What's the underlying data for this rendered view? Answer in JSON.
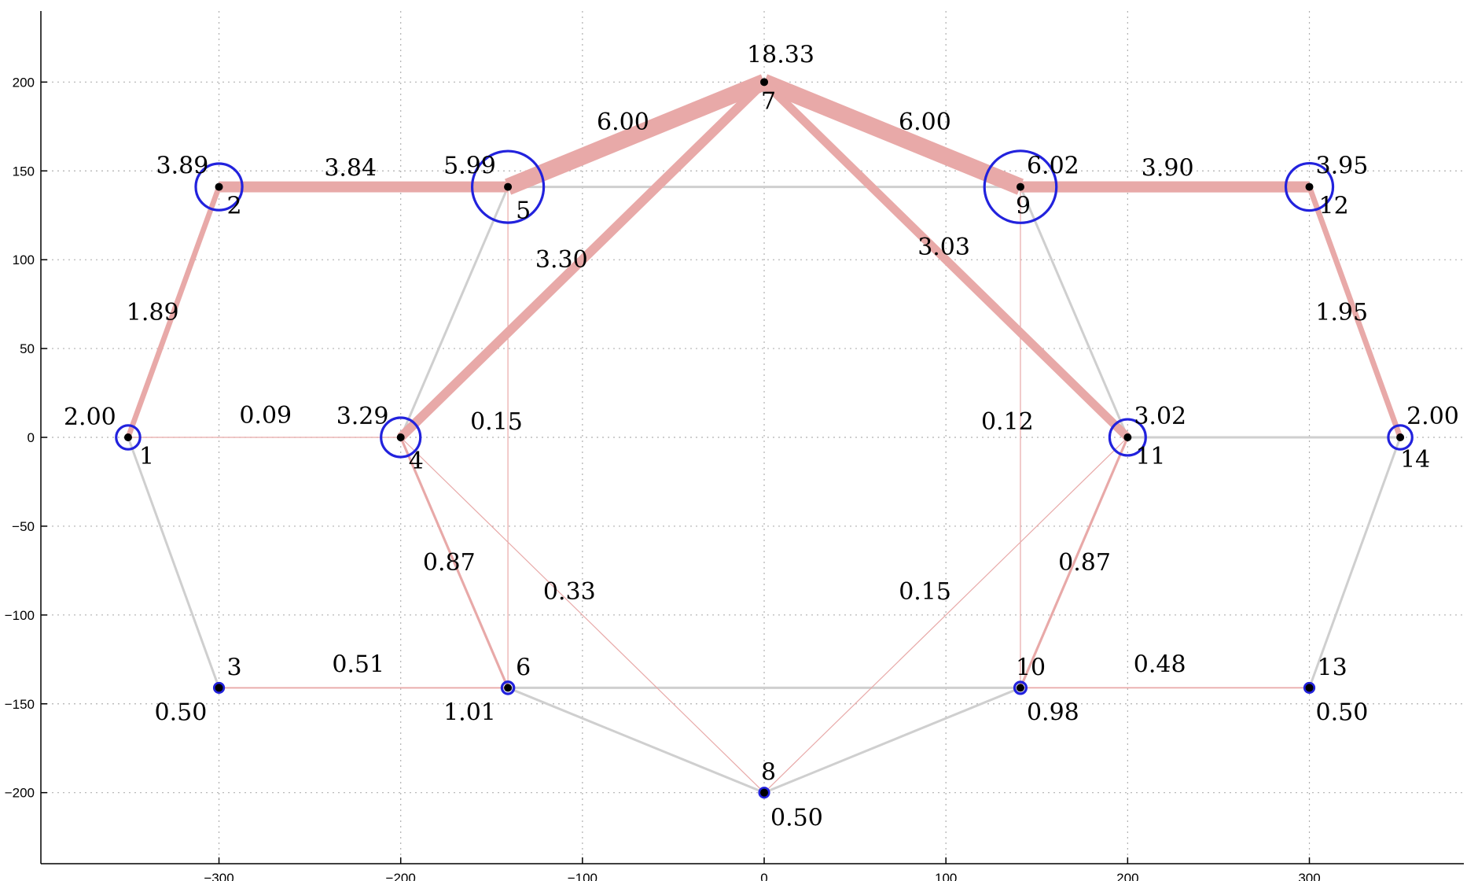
{
  "diagram": {
    "axes": {
      "x_ticks": [
        -300,
        -200,
        -100,
        0,
        100,
        200,
        300
      ],
      "y_ticks": [
        200,
        150,
        100,
        50,
        0,
        -50,
        -100,
        -150,
        -200
      ],
      "x_range": [
        -398,
        385
      ],
      "y_range": [
        -240,
        240
      ],
      "grid": true
    },
    "colors": {
      "flow_edge": "#e8a9a8",
      "inactive_edge": "#cfcfcf",
      "node_circle": "#2222dd",
      "node_dot": "#000000"
    },
    "nodes": [
      {
        "id": 1,
        "label": "1",
        "x": -350,
        "y": 0,
        "value": "2.00",
        "v": 2.0
      },
      {
        "id": 2,
        "label": "2",
        "x": -300,
        "y": 141,
        "value": "3.89",
        "v": 3.89
      },
      {
        "id": 3,
        "label": "3",
        "x": -300,
        "y": -141,
        "value": "0.50",
        "v": 0.5
      },
      {
        "id": 4,
        "label": "4",
        "x": -200,
        "y": 0,
        "value": "3.29",
        "v": 3.29
      },
      {
        "id": 5,
        "label": "5",
        "x": -141,
        "y": 141,
        "value": "5.99",
        "v": 5.99
      },
      {
        "id": 6,
        "label": "6",
        "x": -141,
        "y": -141,
        "value": "1.01",
        "v": 1.01
      },
      {
        "id": 7,
        "label": "7",
        "x": 0,
        "y": 200,
        "value": "18.33",
        "v": 18.33
      },
      {
        "id": 8,
        "label": "8",
        "x": 0,
        "y": -200,
        "value": "0.50",
        "v": 0.5
      },
      {
        "id": 9,
        "label": "9",
        "x": 141,
        "y": 141,
        "value": "6.02",
        "v": 6.02
      },
      {
        "id": 10,
        "label": "10",
        "x": 141,
        "y": -141,
        "value": "0.98",
        "v": 0.98
      },
      {
        "id": 11,
        "label": "11",
        "x": 200,
        "y": 0,
        "value": "3.02",
        "v": 3.02
      },
      {
        "id": 12,
        "label": "12",
        "x": 300,
        "y": 141,
        "value": "3.95",
        "v": 3.95
      },
      {
        "id": 13,
        "label": "13",
        "x": 300,
        "y": -141,
        "value": "0.50",
        "v": 0.5
      },
      {
        "id": 14,
        "label": "14",
        "x": 350,
        "y": 0,
        "value": "2.00",
        "v": 2.0
      }
    ],
    "flow_edges": [
      {
        "from": 1,
        "to": 2,
        "label": "1.89",
        "w": 1.89
      },
      {
        "from": 2,
        "to": 5,
        "label": "3.84",
        "w": 3.84
      },
      {
        "from": 5,
        "to": 7,
        "label": "6.00",
        "w": 6.0
      },
      {
        "from": 7,
        "to": 9,
        "label": "6.00",
        "w": 6.0
      },
      {
        "from": 9,
        "to": 12,
        "label": "3.90",
        "w": 3.9
      },
      {
        "from": 12,
        "to": 14,
        "label": "1.95",
        "w": 1.95
      },
      {
        "from": 4,
        "to": 7,
        "label": "3.30",
        "w": 3.3
      },
      {
        "from": 7,
        "to": 11,
        "label": "3.03",
        "w": 3.03
      },
      {
        "from": 1,
        "to": 4,
        "label": "0.09",
        "w": 0.09
      },
      {
        "from": 4,
        "to": 6,
        "label": "0.87",
        "w": 0.87
      },
      {
        "from": 11,
        "to": 10,
        "label": "0.87",
        "w": 0.87
      },
      {
        "from": 3,
        "to": 6,
        "label": "0.51",
        "w": 0.51
      },
      {
        "from": 10,
        "to": 13,
        "label": "0.48",
        "w": 0.48
      },
      {
        "from": 4,
        "to": 8,
        "label": "0.33",
        "w": 0.33
      },
      {
        "from": 8,
        "to": 11,
        "label": "0.15",
        "w": 0.15
      },
      {
        "from": 5,
        "to": 6,
        "label": "0.15",
        "w": 0.15
      },
      {
        "from": 9,
        "to": 10,
        "label": "0.12",
        "w": 0.12
      }
    ],
    "inactive_edges": [
      {
        "from": 1,
        "to": 3
      },
      {
        "from": 4,
        "to": 5
      },
      {
        "from": 5,
        "to": 9
      },
      {
        "from": 6,
        "to": 10
      },
      {
        "from": 6,
        "to": 8
      },
      {
        "from": 8,
        "to": 10
      },
      {
        "from": 9,
        "to": 11
      },
      {
        "from": 11,
        "to": 14
      },
      {
        "from": 13,
        "to": 14
      }
    ]
  }
}
